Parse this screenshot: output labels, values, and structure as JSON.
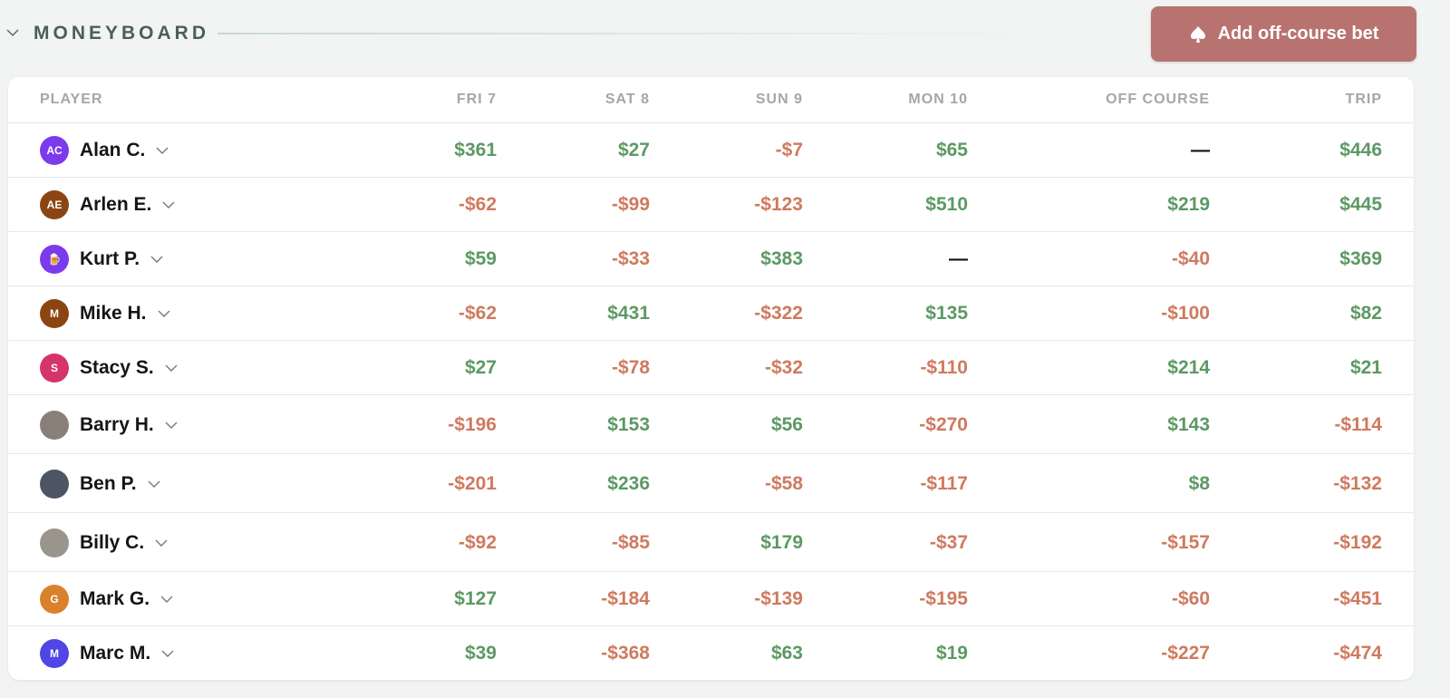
{
  "header": {
    "title": "MONEYBOARD",
    "button": "Add off-course bet"
  },
  "table": {
    "columns": [
      "PLAYER",
      "FRI 7",
      "SAT 8",
      "SUN 9",
      "MON 10",
      "OFF COURSE",
      "TRIP"
    ],
    "rows": [
      {
        "initials": "AC",
        "avatar_color": "#7c3aed",
        "name": "Alan C.",
        "cells": [
          "$361",
          "$27",
          "-$7",
          "$65",
          "—",
          "$446"
        ]
      },
      {
        "initials": "AE",
        "avatar_color": "#8b4513",
        "name": "Arlen E.",
        "cells": [
          "-$62",
          "-$99",
          "-$123",
          "$510",
          "$219",
          "$445"
        ]
      },
      {
        "initials": "🍺",
        "avatar_color": "#7c3aed",
        "name": "Kurt P.",
        "cells": [
          "$59",
          "-$33",
          "$383",
          "—",
          "-$40",
          "$369"
        ]
      },
      {
        "initials": "M",
        "avatar_color": "#8b4513",
        "name": "Mike H.",
        "cells": [
          "-$62",
          "$431",
          "-$322",
          "$135",
          "-$100",
          "$82"
        ]
      },
      {
        "initials": "S",
        "avatar_color": "#d6336c",
        "name": "Stacy S.",
        "cells": [
          "$27",
          "-$78",
          "-$32",
          "-$110",
          "$214",
          "$21"
        ]
      },
      {
        "avatar_color": "#8a7f78",
        "name": "Barry H.",
        "cells": [
          "-$196",
          "$153",
          "$56",
          "-$270",
          "$143",
          "-$114"
        ]
      },
      {
        "avatar_color": "#4b5563",
        "name": "Ben P.",
        "cells": [
          "-$201",
          "$236",
          "-$58",
          "-$117",
          "$8",
          "-$132"
        ]
      },
      {
        "avatar_color": "#9a958c",
        "name": "Billy C.",
        "cells": [
          "-$92",
          "-$85",
          "$179",
          "-$37",
          "-$157",
          "-$192"
        ]
      },
      {
        "initials": "G",
        "avatar_color": "#d9822b",
        "name": "Mark G.",
        "cells": [
          "$127",
          "-$184",
          "-$139",
          "-$195",
          "-$60",
          "-$451"
        ]
      },
      {
        "initials": "M",
        "avatar_color": "#4f46e5",
        "name": "Marc M.",
        "cells": [
          "$39",
          "-$368",
          "$63",
          "$19",
          "-$227",
          "-$474"
        ]
      }
    ]
  }
}
